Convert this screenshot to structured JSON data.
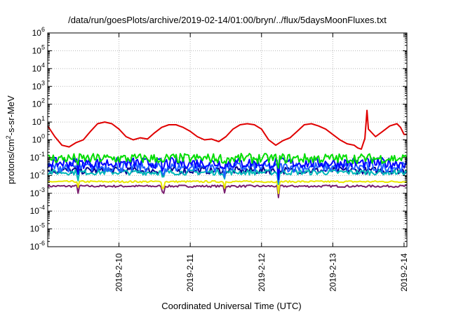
{
  "chart_data": {
    "type": "line",
    "title": "/data/run/goesPlots/archive/2019-02-14/01:00/bryn/../flux/5daysMoonFluxes.txt",
    "xlabel": "Coordinated Universal Time (UTC)",
    "ylabel_parts": {
      "prefix": "protons/cm",
      "superscript": "2",
      "suffix": "-s-sr-MeV"
    },
    "yscale": "log",
    "ylim_exponents": [
      -6,
      6
    ],
    "y_tick_labels": [
      {
        "base": "10",
        "exp": "-6"
      },
      {
        "base": "10",
        "exp": "-5"
      },
      {
        "base": "10",
        "exp": "-4"
      },
      {
        "base": "10",
        "exp": "-3"
      },
      {
        "base": "10",
        "exp": "-2"
      },
      {
        "base": "10",
        "exp": "-1"
      },
      {
        "base": "10",
        "exp": "0"
      },
      {
        "base": "10",
        "exp": "1"
      },
      {
        "base": "10",
        "exp": "2"
      },
      {
        "base": "10",
        "exp": "3"
      },
      {
        "base": "10",
        "exp": "4"
      },
      {
        "base": "10",
        "exp": "5"
      },
      {
        "base": "10",
        "exp": "6"
      }
    ],
    "xlim_days": [
      0,
      5.04
    ],
    "x_ticks": [
      {
        "label": "2019-2-10",
        "day": 1.0
      },
      {
        "label": "2019-2-11",
        "day": 2.0
      },
      {
        "label": "2019-2-12",
        "day": 3.0
      },
      {
        "label": "2019-2-13",
        "day": 4.0
      },
      {
        "label": "2019-2-14",
        "day": 5.0
      }
    ],
    "grid": true,
    "series": [
      {
        "color": "#e00000",
        "values": [
          [
            0.0,
            6
          ],
          [
            0.1,
            1.5
          ],
          [
            0.2,
            0.5
          ],
          [
            0.3,
            0.4
          ],
          [
            0.4,
            0.7
          ],
          [
            0.5,
            1.0
          ],
          [
            0.6,
            3
          ],
          [
            0.7,
            8
          ],
          [
            0.8,
            10
          ],
          [
            0.9,
            8
          ],
          [
            1.0,
            4
          ],
          [
            1.1,
            1.5
          ],
          [
            1.2,
            1.0
          ],
          [
            1.3,
            1.3
          ],
          [
            1.4,
            1.1
          ],
          [
            1.5,
            2.5
          ],
          [
            1.6,
            5
          ],
          [
            1.7,
            7
          ],
          [
            1.8,
            7
          ],
          [
            1.9,
            5
          ],
          [
            2.0,
            3
          ],
          [
            2.1,
            1.5
          ],
          [
            2.2,
            1.0
          ],
          [
            2.3,
            1.1
          ],
          [
            2.4,
            0.8
          ],
          [
            2.5,
            1.5
          ],
          [
            2.6,
            4
          ],
          [
            2.7,
            7
          ],
          [
            2.8,
            8
          ],
          [
            2.9,
            7
          ],
          [
            3.0,
            4
          ],
          [
            3.1,
            1.0
          ],
          [
            3.2,
            0.5
          ],
          [
            3.3,
            0.9
          ],
          [
            3.4,
            1.3
          ],
          [
            3.5,
            3
          ],
          [
            3.6,
            7
          ],
          [
            3.7,
            8
          ],
          [
            3.8,
            6
          ],
          [
            3.9,
            4
          ],
          [
            4.0,
            2
          ],
          [
            4.1,
            1.0
          ],
          [
            4.2,
            0.6
          ],
          [
            4.3,
            0.5
          ],
          [
            4.35,
            0.35
          ],
          [
            4.4,
            0.3
          ],
          [
            4.45,
            1.2
          ],
          [
            4.48,
            45
          ],
          [
            4.5,
            4
          ],
          [
            4.6,
            1.5
          ],
          [
            4.7,
            3
          ],
          [
            4.8,
            6
          ],
          [
            4.9,
            8
          ],
          [
            4.95,
            5
          ],
          [
            5.0,
            2
          ],
          [
            5.04,
            2
          ]
        ]
      },
      {
        "color": "#00dd00",
        "band": {
          "center": 0.09,
          "amp": 0.28
        }
      },
      {
        "color": "#0000ff",
        "band": {
          "center": 0.05,
          "amp": 0.3
        }
      },
      {
        "color": "#1f5fff",
        "band": {
          "center": 0.03,
          "amp": 0.28
        }
      },
      {
        "color": "#00b8b8",
        "band": {
          "center": 0.015,
          "amp": 0.15
        }
      },
      {
        "color": "#000090",
        "band": {
          "center": 0.019,
          "amp": 0.2
        }
      },
      {
        "color": "#e8e800",
        "band": {
          "center": 0.0045,
          "amp": 0.05
        }
      },
      {
        "color": "#7a1f6f",
        "band": {
          "center": 0.0025,
          "amp": 0.06
        }
      }
    ]
  }
}
